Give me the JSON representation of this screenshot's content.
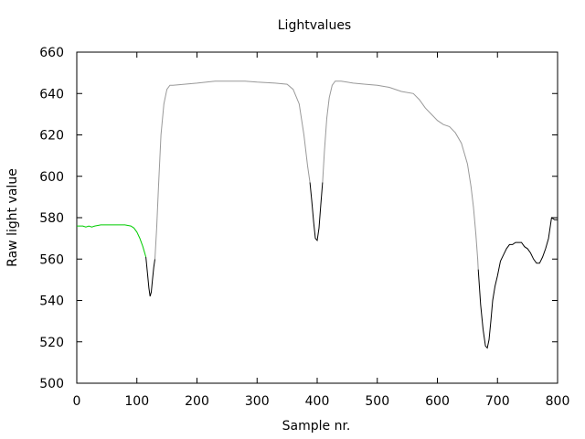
{
  "chart_data": {
    "type": "line",
    "title": "Lightvalues",
    "xlabel": "Sample nr.",
    "ylabel": "Raw light value",
    "xlim": [
      0,
      800
    ],
    "ylim": [
      500,
      660
    ],
    "xticks": [
      0,
      100,
      200,
      300,
      400,
      500,
      600,
      700,
      800
    ],
    "yticks": [
      500,
      520,
      540,
      560,
      580,
      600,
      620,
      640,
      660
    ],
    "grid": false,
    "legend": "none",
    "series": [
      {
        "color": "#00cc00",
        "points": [
          [
            0,
            576
          ],
          [
            10,
            576
          ],
          [
            15,
            575.5
          ],
          [
            20,
            576
          ],
          [
            25,
            575.5
          ],
          [
            30,
            576
          ],
          [
            40,
            576.5
          ],
          [
            50,
            576.5
          ],
          [
            60,
            576.5
          ],
          [
            70,
            576.5
          ],
          [
            80,
            576.5
          ],
          [
            90,
            576
          ],
          [
            95,
            575
          ],
          [
            100,
            573
          ],
          [
            105,
            570
          ],
          [
            110,
            566
          ],
          [
            112,
            564
          ],
          [
            115,
            561
          ]
        ]
      },
      {
        "color": "#000000",
        "points": [
          [
            115,
            561
          ],
          [
            118,
            552
          ],
          [
            120,
            546
          ],
          [
            122,
            542
          ],
          [
            124,
            544
          ],
          [
            126,
            550
          ],
          [
            128,
            556
          ],
          [
            130,
            560
          ]
        ]
      },
      {
        "color": "#999999",
        "points": [
          [
            130,
            560
          ],
          [
            133,
            575
          ],
          [
            136,
            595
          ],
          [
            140,
            620
          ],
          [
            145,
            635
          ],
          [
            150,
            642
          ],
          [
            155,
            644
          ],
          [
            160,
            644
          ],
          [
            200,
            645
          ],
          [
            230,
            646
          ],
          [
            250,
            646
          ],
          [
            280,
            646
          ],
          [
            300,
            645.5
          ],
          [
            330,
            645
          ],
          [
            350,
            644.5
          ],
          [
            360,
            642
          ],
          [
            370,
            635
          ],
          [
            378,
            620
          ],
          [
            384,
            605
          ],
          [
            388,
            597
          ]
        ]
      },
      {
        "color": "#000000",
        "points": [
          [
            388,
            597
          ],
          [
            391,
            588
          ],
          [
            394,
            578
          ],
          [
            397,
            570
          ],
          [
            400,
            569
          ],
          [
            403,
            575
          ],
          [
            406,
            586
          ],
          [
            409,
            597
          ]
        ]
      },
      {
        "color": "#999999",
        "points": [
          [
            409,
            597
          ],
          [
            412,
            612
          ],
          [
            416,
            628
          ],
          [
            420,
            638
          ],
          [
            425,
            644
          ],
          [
            430,
            646
          ],
          [
            440,
            646
          ],
          [
            460,
            645
          ],
          [
            480,
            644.5
          ],
          [
            500,
            644
          ],
          [
            520,
            643
          ],
          [
            540,
            641
          ],
          [
            560,
            640
          ],
          [
            570,
            637
          ],
          [
            580,
            633
          ],
          [
            590,
            630
          ],
          [
            600,
            627
          ],
          [
            610,
            625
          ],
          [
            620,
            624
          ],
          [
            630,
            621
          ],
          [
            640,
            616
          ],
          [
            650,
            606
          ],
          [
            656,
            595
          ],
          [
            660,
            585
          ],
          [
            664,
            572
          ],
          [
            667,
            560
          ],
          [
            668,
            555
          ]
        ]
      },
      {
        "color": "#000000",
        "points": [
          [
            668,
            555
          ],
          [
            672,
            538
          ],
          [
            676,
            526
          ],
          [
            680,
            518
          ],
          [
            683,
            517
          ],
          [
            686,
            521
          ],
          [
            689,
            530
          ],
          [
            692,
            540
          ],
          [
            696,
            547
          ],
          [
            700,
            552
          ],
          [
            705,
            559
          ],
          [
            710,
            562
          ],
          [
            715,
            565
          ],
          [
            720,
            567
          ],
          [
            725,
            567
          ],
          [
            730,
            568
          ],
          [
            740,
            568
          ],
          [
            745,
            566
          ],
          [
            750,
            565
          ],
          [
            755,
            563
          ],
          [
            760,
            560
          ],
          [
            765,
            558
          ],
          [
            770,
            558
          ],
          [
            775,
            561
          ],
          [
            780,
            565
          ],
          [
            785,
            570
          ],
          [
            790,
            580
          ],
          [
            795,
            579
          ],
          [
            800,
            579
          ]
        ]
      }
    ]
  }
}
